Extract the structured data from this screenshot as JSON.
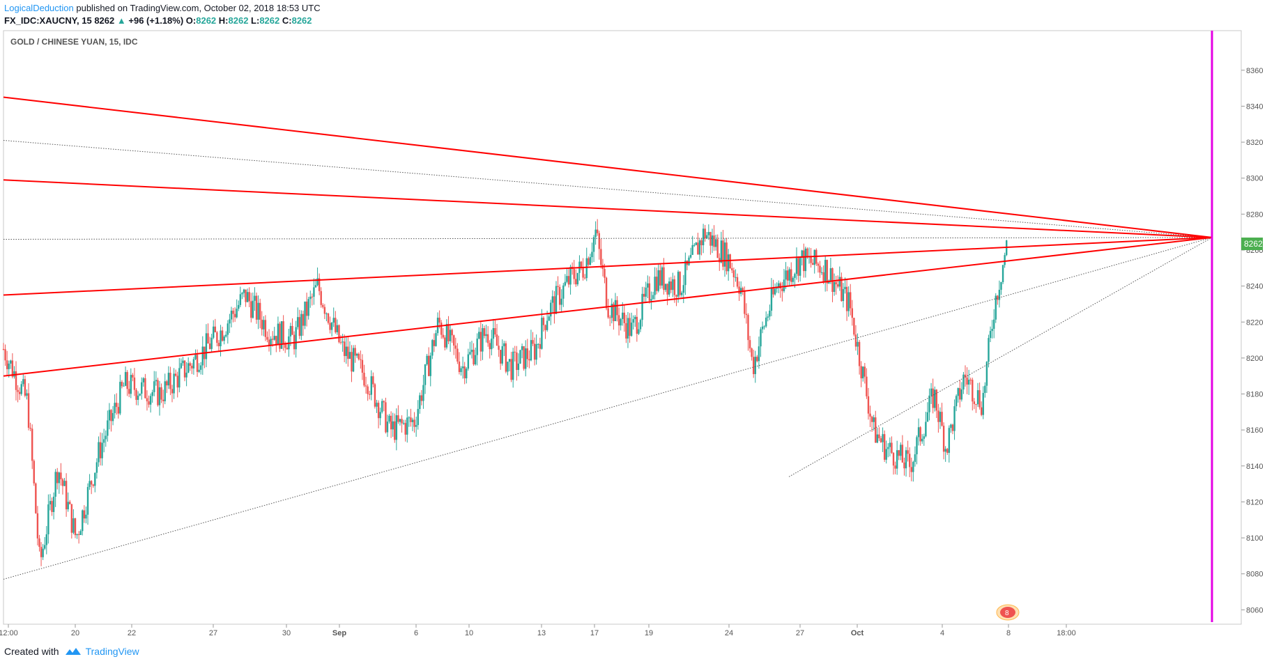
{
  "header": {
    "author": "LogicalDeduction",
    "published": "published on TradingView.com, October 02, 2018 18:53 UTC",
    "symbol": "FX_IDC:XAUCNY, 15",
    "last": "8262",
    "change": "+96 (+1.18%)",
    "o_label": "O:",
    "o_val": "8262",
    "h_label": "H:",
    "h_val": "8262",
    "l_label": "L:",
    "l_val": "8262",
    "c_label": "C:",
    "c_val": "8262"
  },
  "footer": {
    "created_with": "Created with",
    "brand": "TradingView"
  },
  "colors": {
    "up": "#26a69a",
    "down": "#ef5350",
    "trend": "#ff0000",
    "marker": "#e400e4",
    "price_tag": "#4caf50"
  },
  "chart_data": {
    "type": "candlestick",
    "title": "GOLD / CHINESE YUAN, 15, IDC",
    "ylim": [
      8052,
      8382
    ],
    "y_ticks": [
      8060,
      8080,
      8100,
      8120,
      8140,
      8160,
      8180,
      8200,
      8220,
      8240,
      8260,
      8280,
      8300,
      8320,
      8340,
      8360
    ],
    "x_ticks": [
      "12:00",
      "20",
      "22",
      "27",
      "30",
      "Sep",
      "6",
      "10",
      "13",
      "17",
      "19",
      "24",
      "27",
      "Oct",
      "4",
      "8",
      "18:00"
    ],
    "last_price": 8262,
    "price_path": [
      [
        0,
        8205
      ],
      [
        0.02,
        8175
      ],
      [
        0.03,
        8085
      ],
      [
        0.045,
        8140
      ],
      [
        0.06,
        8100
      ],
      [
        0.08,
        8150
      ],
      [
        0.1,
        8185
      ],
      [
        0.13,
        8180
      ],
      [
        0.16,
        8200
      ],
      [
        0.18,
        8215
      ],
      [
        0.2,
        8235
      ],
      [
        0.22,
        8215
      ],
      [
        0.24,
        8210
      ],
      [
        0.26,
        8240
      ],
      [
        0.28,
        8205
      ],
      [
        0.3,
        8190
      ],
      [
        0.32,
        8160
      ],
      [
        0.34,
        8165
      ],
      [
        0.36,
        8220
      ],
      [
        0.38,
        8195
      ],
      [
        0.4,
        8215
      ],
      [
        0.42,
        8195
      ],
      [
        0.44,
        8205
      ],
      [
        0.45,
        8225
      ],
      [
        0.47,
        8245
      ],
      [
        0.48,
        8250
      ],
      [
        0.49,
        8270
      ],
      [
        0.5,
        8230
      ],
      [
        0.52,
        8215
      ],
      [
        0.54,
        8245
      ],
      [
        0.56,
        8240
      ],
      [
        0.58,
        8270
      ],
      [
        0.6,
        8255
      ],
      [
        0.61,
        8240
      ],
      [
        0.62,
        8195
      ],
      [
        0.63,
        8220
      ],
      [
        0.64,
        8240
      ],
      [
        0.66,
        8255
      ],
      [
        0.68,
        8250
      ],
      [
        0.7,
        8230
      ],
      [
        0.72,
        8160
      ],
      [
        0.73,
        8150
      ],
      [
        0.75,
        8140
      ],
      [
        0.77,
        8180
      ],
      [
        0.78,
        8150
      ],
      [
        0.795,
        8190
      ],
      [
        0.81,
        8175
      ],
      [
        0.82,
        8230
      ],
      [
        0.83,
        8262
      ]
    ],
    "trendlines_solid": [
      {
        "x1": 0.0,
        "y1": 8345,
        "x2": 1.0,
        "y2": 8267
      },
      {
        "x1": 0.0,
        "y1": 8299,
        "x2": 1.0,
        "y2": 8267
      },
      {
        "x1": 0.0,
        "y1": 8235,
        "x2": 1.0,
        "y2": 8267
      },
      {
        "x1": 0.0,
        "y1": 8190,
        "x2": 1.0,
        "y2": 8267
      }
    ],
    "trendlines_dotted": [
      {
        "x1": 0.0,
        "y1": 8321,
        "x2": 1.0,
        "y2": 8267
      },
      {
        "x1": 0.0,
        "y1": 8266,
        "x2": 1.0,
        "y2": 8267
      },
      {
        "x1": 0.0,
        "y1": 8077,
        "x2": 1.0,
        "y2": 8267
      },
      {
        "x1": 0.65,
        "y1": 8134,
        "x2": 1.0,
        "y2": 8267
      }
    ],
    "event_label": "8"
  }
}
